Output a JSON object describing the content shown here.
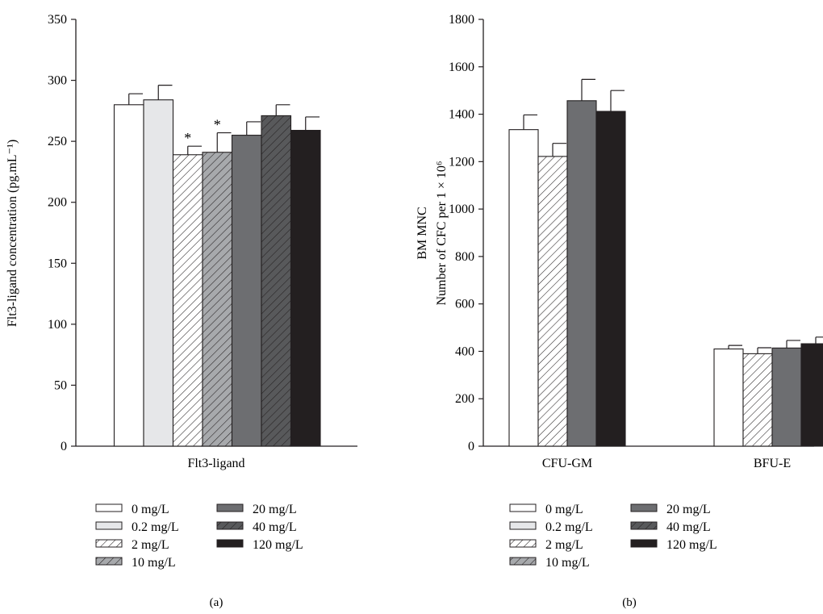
{
  "chart_data": [
    {
      "type": "bar",
      "panel_label": "(a)",
      "ylabel": "Flt3-ligand concentration (pg.mL⁻¹)",
      "ylim": [
        0,
        350
      ],
      "yticks": [
        0,
        50,
        100,
        150,
        200,
        250,
        300,
        350
      ],
      "categories": [
        "Flt3-ligand"
      ],
      "series": [
        {
          "name": "0 mg/L",
          "values": [
            280
          ],
          "error": [
            9
          ],
          "sig": [
            false
          ],
          "style": "white"
        },
        {
          "name": "0.2 mg/L",
          "values": [
            284
          ],
          "error": [
            12
          ],
          "sig": [
            false
          ],
          "style": "lightgray"
        },
        {
          "name": "2 mg/L",
          "values": [
            239
          ],
          "error": [
            7
          ],
          "sig": [
            true
          ],
          "style": "white-hatch"
        },
        {
          "name": "10 mg/L",
          "values": [
            241
          ],
          "error": [
            16
          ],
          "sig": [
            true
          ],
          "style": "gray-hatch"
        },
        {
          "name": "20 mg/L",
          "values": [
            255
          ],
          "error": [
            11
          ],
          "sig": [
            false
          ],
          "style": "darkgray"
        },
        {
          "name": "40 mg/L",
          "values": [
            271
          ],
          "error": [
            9
          ],
          "sig": [
            false
          ],
          "style": "dark-hatch"
        },
        {
          "name": "120 mg/L",
          "values": [
            259
          ],
          "error": [
            11
          ],
          "sig": [
            false
          ],
          "style": "black"
        }
      ],
      "significance_marker": "*",
      "legend": [
        "0 mg/L",
        "0.2 mg/L",
        "2 mg/L",
        "10 mg/L",
        "20 mg/L",
        "40 mg/L",
        "120 mg/L"
      ]
    },
    {
      "type": "bar",
      "panel_label": "(b)",
      "ylabel_line1": "BM MNC",
      "ylabel_line2": "Number of CFC per 1 × 10⁶",
      "ylim": [
        0,
        1800
      ],
      "yticks": [
        0,
        200,
        400,
        600,
        800,
        1000,
        1200,
        1400,
        1600,
        1800
      ],
      "categories": [
        "CFU-GM",
        "BFU-E"
      ],
      "series": [
        {
          "name": "0 mg/L",
          "values": [
            1335,
            410
          ],
          "error": [
            62,
            15
          ],
          "style": "white"
        },
        {
          "name": "2 mg/L",
          "values": [
            1222,
            390
          ],
          "error": [
            55,
            25
          ],
          "style": "white-hatch"
        },
        {
          "name": "20 mg/L",
          "values": [
            1457,
            414
          ],
          "error": [
            90,
            32
          ],
          "style": "darkgray"
        },
        {
          "name": "120 mg/L",
          "values": [
            1412,
            432
          ],
          "error": [
            88,
            28
          ],
          "style": "black"
        }
      ],
      "legend": [
        "0 mg/L",
        "0.2 mg/L",
        "2 mg/L",
        "10 mg/L",
        "20 mg/L",
        "40 mg/L",
        "120 mg/L"
      ]
    }
  ],
  "colors": {
    "white": "#ffffff",
    "lightgray": "#e6e7e9",
    "hatch_bg_white": "#ffffff",
    "hatch_bg_gray": "#a7a9ac",
    "darkgray": "#6d6e71",
    "hatch_bg_dark": "#58595b",
    "black": "#231f20"
  }
}
